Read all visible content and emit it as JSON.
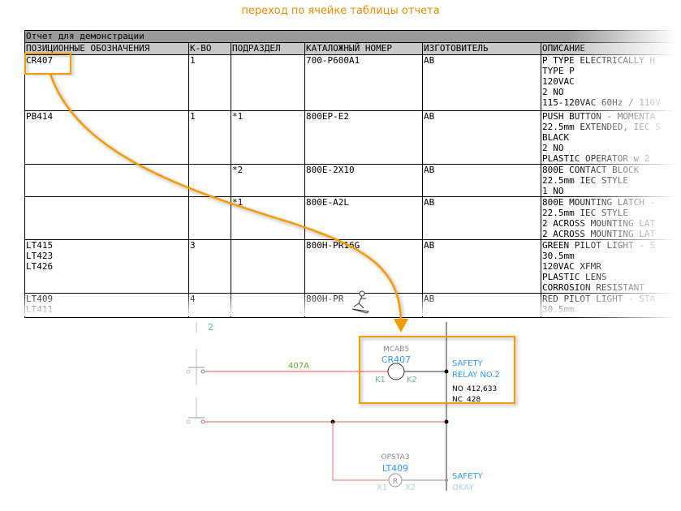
{
  "caption": "переход по ячейке таблицы отчета",
  "report": {
    "title": "Отчет для демонстрации",
    "columns": [
      "ПОЗИЦИОННЫЕ ОБОЗНАЧЕНИЯ",
      "К-ВО",
      "ПОДРАЗДЕЛ",
      "КАТАЛОЖНЫЙ НОМЕР",
      "ИЗГОТОВИТЕЛЬ",
      "ОПИСАНИЕ"
    ],
    "rows": [
      {
        "tags": "CR407",
        "qty": "1",
        "sub": "",
        "catalog": "700-P600A1",
        "mfr": "AB",
        "desc": [
          "P TYPE ELECTRICALLY H",
          "TYPE P",
          "120VAC",
          "2 NO",
          "115-120VAC 60Hz / 110V"
        ]
      },
      {
        "tags": "PB414",
        "qty": "1",
        "sub": "*1",
        "catalog": "800EP-E2",
        "mfr": "AB",
        "desc": [
          "PUSH BUTTON - MOMENTA",
          "22.5mm EXTENDED, IEC S",
          "BLACK",
          "2 NO",
          "PLASTIC OPERATOR w 2"
        ]
      },
      {
        "tags": "",
        "qty": "",
        "sub": "*2",
        "catalog": "800E-2X10",
        "mfr": "AB",
        "desc": [
          "800E CONTACT BLOCK",
          "22.5mm IEC STYLE",
          "1 NO"
        ]
      },
      {
        "tags": "",
        "qty": "",
        "sub": "*1",
        "catalog": "800E-A2L",
        "mfr": "AB",
        "desc": [
          "800E MOUNTING LATCH -",
          "22.5mm IEC STYLE",
          "2 ACROSS MOUNTING LAT",
          "2 ACROSS MOUNTING LAT"
        ]
      },
      {
        "tags": "LT415\nLT423\nLT426",
        "qty": "3",
        "sub": "",
        "catalog": "800H-PR16G",
        "mfr": "AB",
        "desc": [
          "GREEN PILOT LIGHT - S",
          "30.5mm",
          "120VAC XFMR",
          "PLASTIC LENS",
          "CORROSION RESISTANT"
        ]
      },
      {
        "tags": "LT409\nLT411",
        "qty": "4",
        "sub": "",
        "catalog": "800H-PR",
        "mfr": "AB",
        "desc": [
          "RED PILOT LIGHT - STA",
          "30.5mm"
        ]
      }
    ]
  },
  "schematic": {
    "wire_label": "407A",
    "rung_ref": "2",
    "coil": {
      "location": "MCAB5",
      "tag": "CR407",
      "pin1": "K1",
      "pin2": "K2",
      "desc1": "SAFETY",
      "desc2": "RELAY NO.2",
      "no_label": "NO",
      "no_refs": "412,633",
      "nc_label": "NC",
      "nc_refs": "428"
    },
    "lamp": {
      "location": "OPSTA3",
      "tag": "LT409",
      "letter": "R",
      "pin1": "X1",
      "pin2": "X2",
      "desc1": "SAFETY",
      "desc2": "OKAY"
    }
  },
  "colors": {
    "accent": "#f59a00",
    "wire": "#ff4040",
    "tag": "#3399ff",
    "pin": "#66b899",
    "wire_label": "#66aa22"
  }
}
